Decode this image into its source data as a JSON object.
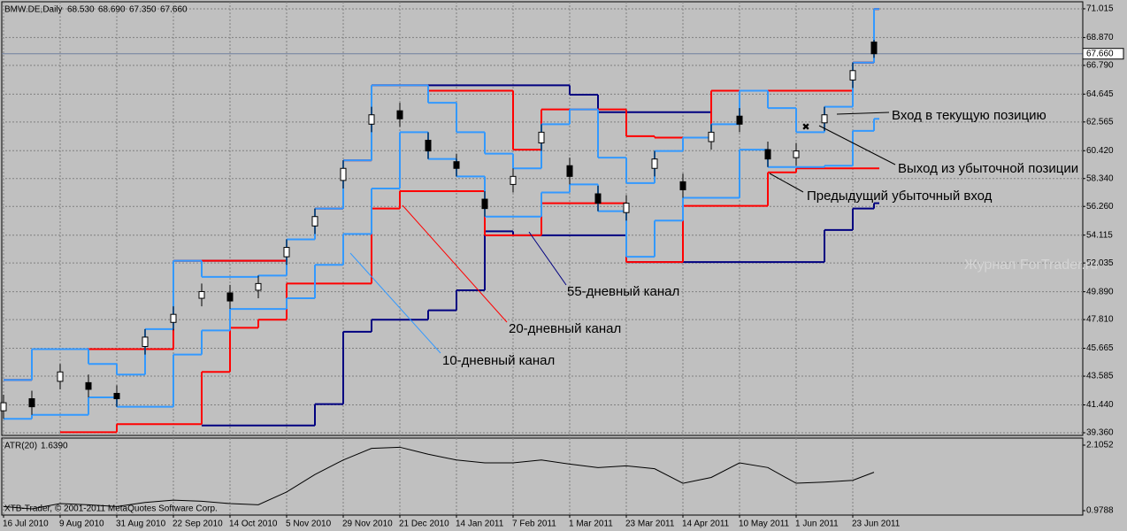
{
  "chart_data": {
    "type": "candlestick",
    "header": {
      "symbol": "BMW.DE,Daily",
      "ohlc_labels": [
        "68.530",
        "68.690",
        "67.350",
        "67.660"
      ]
    },
    "x": [
      0,
      8,
      16,
      24,
      32,
      40,
      48,
      56,
      64,
      72,
      80,
      88,
      96,
      104,
      112,
      120,
      128,
      136,
      144,
      152,
      160,
      168,
      176,
      184,
      192,
      200,
      208,
      216,
      224,
      232,
      240,
      246
    ],
    "open": [
      41.0,
      41.9,
      43.2,
      43.1,
      42.3,
      45.8,
      47.6,
      49.4,
      49.8,
      50.0,
      52.5,
      54.8,
      58.2,
      62.4,
      63.4,
      61.2,
      59.6,
      56.8,
      57.9,
      61.0,
      59.3,
      57.2,
      55.8,
      59.1,
      58.1,
      61.1,
      63.0,
      60.5,
      59.9,
      62.5,
      65.7,
      68.53
    ],
    "high": [
      42.2,
      42.5,
      44.5,
      43.7,
      42.9,
      47.1,
      48.8,
      50.5,
      50.4,
      51.1,
      53.8,
      56.1,
      59.7,
      63.7,
      64.0,
      61.8,
      60.2,
      57.4,
      59.1,
      62.4,
      59.9,
      57.8,
      57.1,
      60.4,
      58.7,
      62.4,
      63.6,
      61.1,
      61.0,
      63.7,
      67.0,
      68.69
    ],
    "low": [
      40.4,
      40.7,
      42.6,
      42.0,
      41.3,
      45.2,
      47.0,
      48.8,
      48.6,
      49.4,
      51.9,
      54.2,
      57.6,
      61.8,
      62.2,
      59.8,
      58.5,
      55.5,
      57.3,
      60.4,
      57.9,
      55.9,
      55.2,
      58.5,
      56.9,
      60.5,
      61.8,
      59.2,
      59.3,
      61.9,
      65.1,
      67.35
    ],
    "close": [
      41.6,
      41.3,
      43.9,
      42.6,
      41.9,
      46.5,
      48.2,
      49.9,
      49.2,
      50.5,
      53.2,
      55.5,
      59.1,
      63.1,
      62.8,
      60.4,
      59.1,
      56.1,
      58.5,
      61.8,
      58.5,
      56.5,
      56.5,
      59.8,
      57.5,
      61.8,
      62.4,
      59.8,
      60.4,
      63.1,
      66.4,
      67.66
    ],
    "series": [
      {
        "color": "#000080",
        "values": [
          43.3,
          45.6,
          45.6,
          45.6,
          45.6,
          45.6,
          52.2,
          52.2,
          52.2,
          52.2,
          53.8,
          56.1,
          59.7,
          65.3,
          65.3,
          65.3,
          65.3,
          65.3,
          65.3,
          65.3,
          64.6,
          63.3,
          63.3,
          63.3,
          63.3,
          64.9,
          64.9,
          64.9,
          64.9,
          64.9,
          67.0,
          71.0
        ]
      },
      {
        "color": "#000080",
        "values": [
          null,
          null,
          null,
          null,
          null,
          null,
          null,
          39.9,
          39.9,
          39.9,
          39.9,
          41.5,
          46.9,
          47.8,
          47.8,
          48.5,
          50.0,
          54.4,
          54.1,
          54.1,
          54.1,
          54.1,
          52.1,
          52.1,
          52.1,
          52.1,
          52.1,
          52.1,
          52.1,
          54.5,
          56.1,
          56.5
        ]
      },
      {
        "color": "#ff0000",
        "values": [
          43.3,
          45.6,
          45.6,
          45.6,
          45.6,
          45.6,
          52.2,
          52.2,
          52.2,
          52.2,
          53.8,
          56.1,
          59.7,
          65.3,
          65.3,
          64.9,
          64.9,
          64.9,
          60.5,
          63.5,
          63.5,
          63.5,
          61.5,
          61.4,
          61.4,
          64.9,
          64.9,
          64.9,
          64.9,
          64.9,
          67.0,
          71.0
        ]
      },
      {
        "color": "#ff0000",
        "values": [
          null,
          null,
          39.4,
          39.4,
          40.0,
          40.0,
          40.0,
          43.9,
          47.2,
          47.8,
          50.5,
          50.5,
          50.5,
          56.1,
          57.4,
          57.4,
          57.4,
          54.1,
          54.1,
          56.5,
          56.5,
          56.5,
          52.1,
          52.1,
          56.3,
          56.3,
          56.3,
          58.8,
          59.1,
          59.1,
          59.1,
          59.1
        ]
      },
      {
        "color": "#3399ff",
        "values": [
          43.3,
          45.6,
          45.6,
          44.5,
          43.7,
          47.1,
          52.2,
          51.0,
          51.0,
          51.1,
          53.8,
          56.1,
          59.7,
          65.3,
          65.3,
          64.0,
          61.8,
          60.2,
          59.1,
          62.4,
          63.5,
          59.9,
          58.0,
          60.4,
          61.4,
          62.4,
          64.9,
          63.6,
          61.8,
          63.7,
          67.0,
          71.0
        ]
      },
      {
        "color": "#3399ff",
        "values": [
          40.4,
          40.7,
          40.7,
          42.0,
          41.3,
          41.3,
          45.2,
          47.0,
          48.6,
          48.6,
          49.4,
          51.9,
          54.2,
          57.6,
          61.8,
          59.8,
          58.5,
          55.5,
          55.5,
          57.3,
          57.9,
          55.9,
          52.5,
          55.2,
          56.9,
          56.9,
          60.5,
          59.2,
          59.2,
          59.3,
          61.9,
          62.8
        ]
      }
    ],
    "xlim": [
      -0.5,
      305
    ],
    "xticks": [
      {
        "value": 0,
        "label": "16 Jul 2010"
      },
      {
        "value": 16,
        "label": "9 Aug 2010"
      },
      {
        "value": 32,
        "label": "31 Aug 2010"
      },
      {
        "value": 48,
        "label": "22 Sep 2010"
      },
      {
        "value": 64,
        "label": "14 Oct 2010"
      },
      {
        "value": 80,
        "label": "5 Nov 2010"
      },
      {
        "value": 96,
        "label": "29 Nov 2010"
      },
      {
        "value": 112,
        "label": "21 Dec 2010"
      },
      {
        "value": 128,
        "label": "14 Jan 2011"
      },
      {
        "value": 144,
        "label": "7 Feb 2011"
      },
      {
        "value": 160,
        "label": "1 Mar 2011"
      },
      {
        "value": 176,
        "label": "23 Mar 2011"
      },
      {
        "value": 192,
        "label": "14 Apr 2011"
      },
      {
        "value": 208,
        "label": "10 May 2011"
      },
      {
        "value": 224,
        "label": "1 Jun 2011"
      },
      {
        "value": 240,
        "label": "23 Jun 2011"
      }
    ],
    "ylim": [
      39.16,
      71.54
    ],
    "yticks": [
      71.015,
      {
        "value": 68.87,
        "label": "68.870"
      },
      {
        "value": 66.79,
        "label": "66.790"
      },
      64.645,
      62.565,
      {
        "value": 60.42,
        "label": "60.420"
      },
      {
        "value": 58.34,
        "label": "58.340"
      },
      {
        "value": 56.26,
        "label": "56.260"
      },
      54.115,
      52.035,
      {
        "value": 49.89,
        "label": "49.890"
      },
      {
        "value": 47.81,
        "label": "47.810"
      },
      45.665,
      43.585,
      {
        "value": 41.44,
        "label": "41.440"
      },
      {
        "value": 39.36,
        "label": "39.360"
      }
    ],
    "grid": true,
    "current_price": {
      "value": 67.66,
      "label": "67.660"
    },
    "annotations": [
      "Вход в текущую позицию",
      "Выход из убыточной позиции",
      "Предыдущий убыточный вход",
      "55-дневный канал",
      "20-дневный канал",
      "10-дневный канал"
    ],
    "watermark": "Журнал ForTrader.ru",
    "copyright": "XTB-Trader, © 2001-2011 MetaQuotes Software Corp.",
    "atr": {
      "name": "ATR(20)",
      "value_label": "1.6390",
      "values": [
        1.05,
        1.01,
        1.1,
        1.08,
        1.05,
        1.12,
        1.16,
        1.14,
        1.1,
        1.08,
        1.3,
        1.6,
        1.85,
        2.05,
        2.07,
        1.95,
        1.85,
        1.8,
        1.8,
        1.85,
        1.78,
        1.72,
        1.75,
        1.7,
        1.45,
        1.55,
        1.8,
        1.72,
        1.45,
        1.47,
        1.5,
        1.639
      ],
      "ylim": [
        0.903,
        2.227
      ],
      "yticks": [
        2.1052,
        0.9788
      ]
    }
  }
}
